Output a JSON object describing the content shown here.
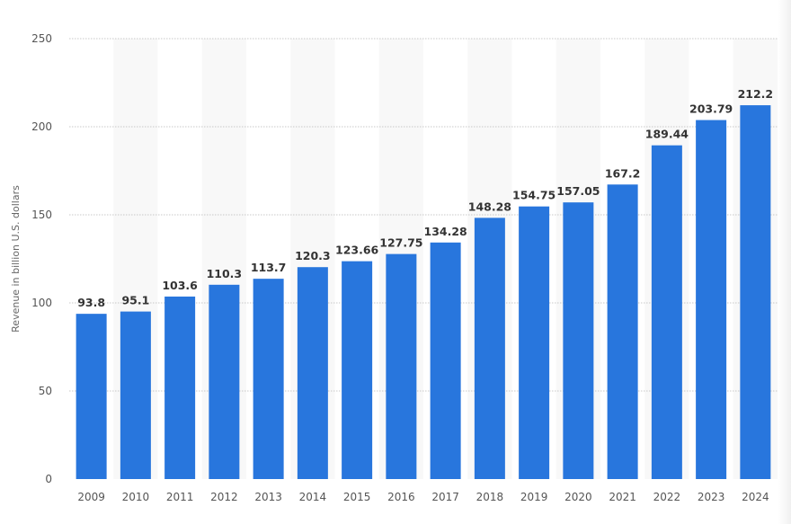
{
  "chart_data": {
    "type": "bar",
    "categories": [
      "2009",
      "2010",
      "2011",
      "2012",
      "2013",
      "2014",
      "2015",
      "2016",
      "2017",
      "2018",
      "2019",
      "2020",
      "2021",
      "2022",
      "2023",
      "2024"
    ],
    "values": [
      93.8,
      95.1,
      103.6,
      110.3,
      113.7,
      120.3,
      123.66,
      127.75,
      134.28,
      148.28,
      154.75,
      157.05,
      167.2,
      189.44,
      203.79,
      212.2
    ],
    "data_labels": [
      "93.8",
      "95.1",
      "103.6",
      "110.3",
      "113.7",
      "120.3",
      "123.66",
      "127.75",
      "134.28",
      "148.28",
      "154.75",
      "157.05",
      "167.2",
      "189.44",
      "203.79",
      "212.2"
    ],
    "title": "",
    "xlabel": "",
    "ylabel": "Revenue in billion U.S. dollars",
    "ylim": [
      0,
      250
    ],
    "yticks": [
      0,
      50,
      100,
      150,
      200,
      250
    ],
    "grid": true,
    "legend": "none",
    "bar_color": "#2876dd"
  }
}
